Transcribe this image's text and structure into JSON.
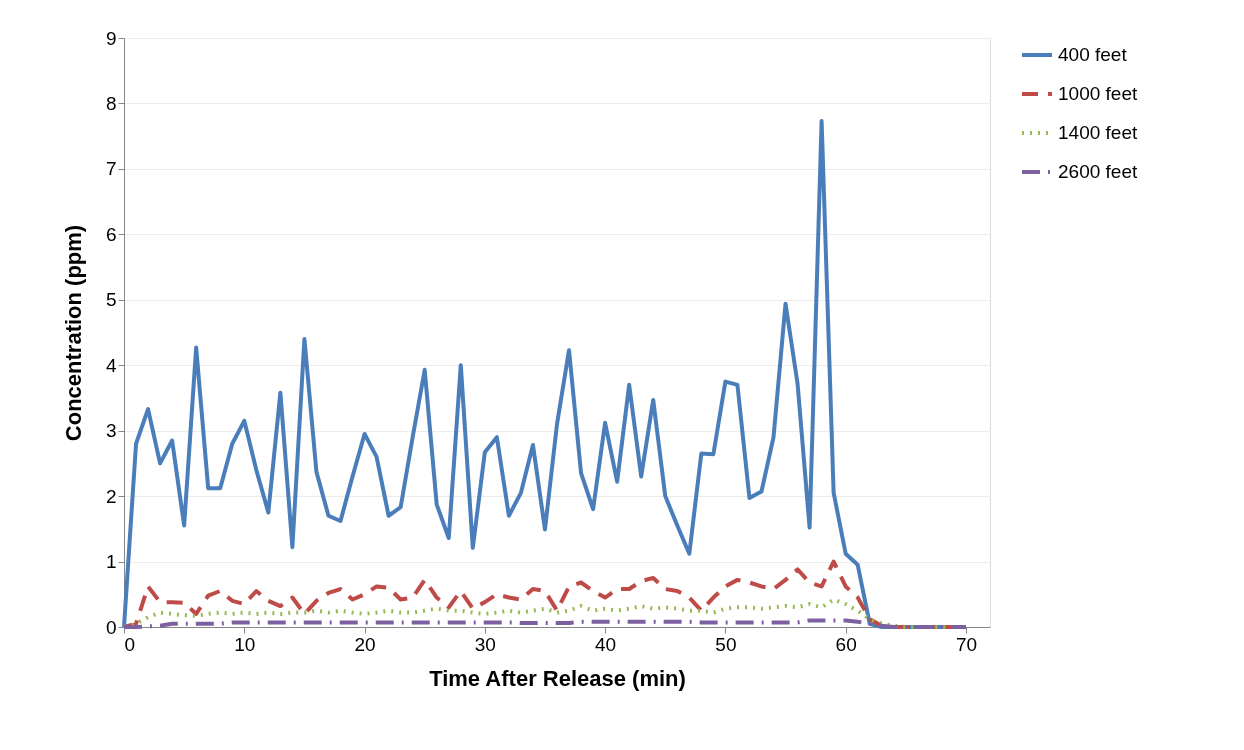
{
  "chart_data": {
    "type": "line",
    "xlabel": "Time After Release (min)",
    "ylabel": "Concentration (ppm)",
    "xlim": [
      0,
      72
    ],
    "xticks": [
      0,
      10,
      20,
      30,
      40,
      50,
      60,
      70
    ],
    "ylim": [
      0,
      9
    ],
    "yticks": [
      0,
      1,
      2,
      3,
      4,
      5,
      6,
      7,
      8,
      9
    ],
    "grid": "y",
    "legend": "right",
    "marker": "none",
    "x": [
      0,
      1,
      2,
      3,
      4,
      5,
      6,
      7,
      8,
      9,
      10,
      11,
      12,
      13,
      14,
      15,
      16,
      17,
      18,
      19,
      20,
      21,
      22,
      23,
      24,
      25,
      26,
      27,
      28,
      29,
      30,
      31,
      32,
      33,
      34,
      35,
      36,
      37,
      38,
      39,
      40,
      41,
      42,
      43,
      44,
      45,
      46,
      47,
      48,
      49,
      50,
      51,
      52,
      53,
      54,
      55,
      56,
      57,
      58,
      59,
      60,
      61,
      62,
      63,
      64,
      65,
      66,
      67,
      68,
      69,
      70
    ],
    "series": [
      {
        "name": "400 feet",
        "color": "#4a7ebb",
        "line_style": "solid",
        "values": [
          0,
          2.8,
          3.33,
          2.5,
          2.85,
          1.55,
          4.27,
          2.12,
          2.12,
          2.8,
          3.15,
          2.4,
          1.75,
          3.58,
          1.22,
          4.4,
          2.37,
          1.7,
          1.62,
          2.3,
          2.95,
          2.6,
          1.7,
          1.83,
          2.9,
          3.93,
          1.87,
          1.36,
          4.0,
          1.21,
          2.67,
          2.9,
          1.7,
          2.05,
          2.78,
          1.49,
          3.1,
          4.23,
          2.35,
          1.8,
          3.12,
          2.22,
          3.7,
          2.3,
          3.47,
          2.0,
          1.55,
          1.12,
          2.65,
          2.64,
          3.75,
          3.7,
          1.97,
          2.07,
          2.9,
          4.94,
          3.72,
          1.52,
          7.73,
          2.05,
          1.12,
          0.95,
          0.05,
          0,
          0,
          0,
          0,
          0,
          0,
          0,
          0
        ]
      },
      {
        "name": "1000 feet",
        "color": "#be4b48",
        "line_style": "dashed",
        "values": [
          0,
          0.05,
          0.62,
          0.38,
          0.38,
          0.37,
          0.2,
          0.48,
          0.55,
          0.4,
          0.35,
          0.55,
          0.4,
          0.32,
          0.45,
          0.2,
          0.4,
          0.52,
          0.58,
          0.42,
          0.5,
          0.62,
          0.6,
          0.42,
          0.45,
          0.72,
          0.45,
          0.3,
          0.55,
          0.28,
          0.38,
          0.5,
          0.45,
          0.42,
          0.58,
          0.55,
          0.25,
          0.62,
          0.68,
          0.55,
          0.45,
          0.58,
          0.58,
          0.7,
          0.75,
          0.58,
          0.55,
          0.45,
          0.25,
          0.45,
          0.62,
          0.72,
          0.68,
          0.62,
          0.58,
          0.72,
          0.88,
          0.68,
          0.62,
          1.0,
          0.62,
          0.45,
          0.12,
          0.02,
          0,
          0,
          0,
          0,
          0,
          0,
          0
        ]
      },
      {
        "name": "1400 feet",
        "color": "#98b954",
        "line_style": "dotted",
        "values": [
          0,
          0.05,
          0.15,
          0.22,
          0.2,
          0.18,
          0.17,
          0.2,
          0.22,
          0.2,
          0.22,
          0.2,
          0.22,
          0.2,
          0.22,
          0.22,
          0.25,
          0.22,
          0.25,
          0.22,
          0.2,
          0.22,
          0.25,
          0.22,
          0.22,
          0.25,
          0.28,
          0.25,
          0.25,
          0.22,
          0.2,
          0.22,
          0.25,
          0.22,
          0.25,
          0.28,
          0.22,
          0.25,
          0.32,
          0.25,
          0.28,
          0.25,
          0.28,
          0.32,
          0.28,
          0.3,
          0.28,
          0.25,
          0.25,
          0.22,
          0.28,
          0.3,
          0.3,
          0.28,
          0.3,
          0.32,
          0.3,
          0.35,
          0.3,
          0.42,
          0.35,
          0.25,
          0.12,
          0.05,
          0.02,
          0,
          0,
          0,
          0,
          0,
          0
        ]
      },
      {
        "name": "2600 feet",
        "color": "#7d60a0",
        "line_style": "dashdot",
        "values": [
          0,
          0,
          0.01,
          0.02,
          0.05,
          0.05,
          0.05,
          0.05,
          0.05,
          0.07,
          0.07,
          0.07,
          0.07,
          0.07,
          0.07,
          0.07,
          0.07,
          0.07,
          0.07,
          0.07,
          0.07,
          0.07,
          0.07,
          0.07,
          0.07,
          0.07,
          0.07,
          0.07,
          0.07,
          0.07,
          0.07,
          0.07,
          0.07,
          0.06,
          0.06,
          0.06,
          0.06,
          0.06,
          0.08,
          0.08,
          0.08,
          0.08,
          0.08,
          0.08,
          0.08,
          0.08,
          0.08,
          0.08,
          0.07,
          0.07,
          0.07,
          0.07,
          0.07,
          0.07,
          0.07,
          0.07,
          0.07,
          0.1,
          0.1,
          0.1,
          0.1,
          0.08,
          0.05,
          0.02,
          0,
          0,
          0,
          0,
          0,
          0,
          0
        ]
      }
    ]
  }
}
